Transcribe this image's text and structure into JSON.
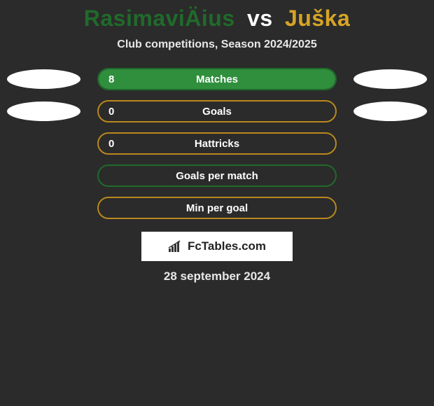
{
  "colors": {
    "green": "#2f8f3d",
    "green_border": "#206a2b",
    "gold": "#d7a427",
    "gold_border": "#b8881c",
    "bg": "#2b2b2b",
    "white": "#ffffff"
  },
  "header": {
    "player1": "RasimaviÄius",
    "vs": "vs",
    "player2": "Juška",
    "subtitle": "Club competitions, Season 2024/2025"
  },
  "rows": [
    {
      "label": "Matches",
      "value": "8",
      "show_value": true,
      "fill_pct": 100,
      "bar_border": "#206a2b",
      "fill_color": "#2f8f3d",
      "left_ellipse": "#ffffff",
      "right_ellipse": "#ffffff",
      "show_ellipses": true
    },
    {
      "label": "Goals",
      "value": "0",
      "show_value": true,
      "fill_pct": 0,
      "bar_border": "#b8881c",
      "fill_color": "#d7a427",
      "left_ellipse": "#ffffff",
      "right_ellipse": "#ffffff",
      "show_ellipses": true
    },
    {
      "label": "Hattricks",
      "value": "0",
      "show_value": true,
      "fill_pct": 0,
      "bar_border": "#b8881c",
      "fill_color": "#d7a427",
      "show_ellipses": false
    },
    {
      "label": "Goals per match",
      "value": "",
      "show_value": false,
      "fill_pct": 0,
      "bar_border": "#206a2b",
      "fill_color": "#2f8f3d",
      "show_ellipses": false
    },
    {
      "label": "Min per goal",
      "value": "",
      "show_value": false,
      "fill_pct": 0,
      "bar_border": "#b8881c",
      "fill_color": "#d7a427",
      "show_ellipses": false
    }
  ],
  "branding": {
    "text": "FcTables.com"
  },
  "date": "28 september 2024"
}
